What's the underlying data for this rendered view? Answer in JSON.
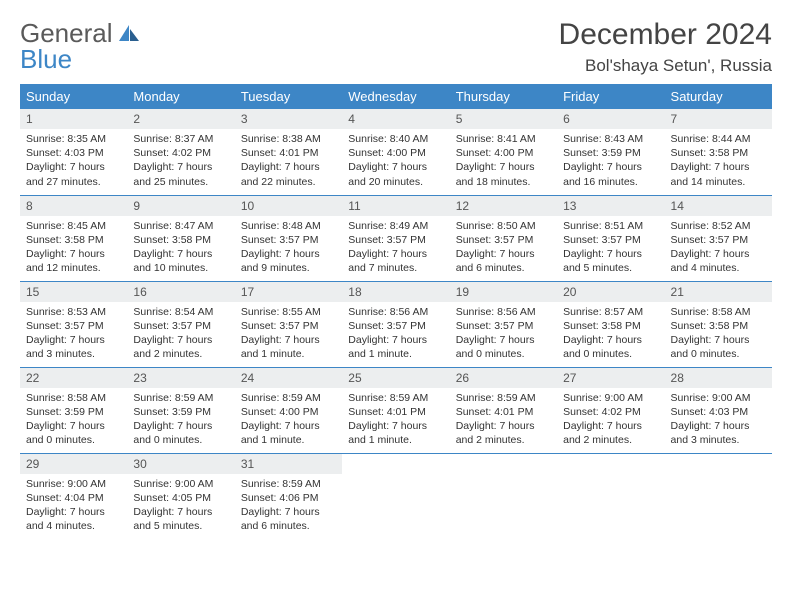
{
  "logo": {
    "text1": "General",
    "text2": "Blue",
    "icon_color": "#3d86c6"
  },
  "title": "December 2024",
  "location": "Bol'shaya Setun', Russia",
  "colors": {
    "header_bg": "#3d86c6",
    "header_text": "#ffffff",
    "daynum_bg": "#eceeef",
    "border": "#3d86c6",
    "text": "#333333"
  },
  "weekdays": [
    "Sunday",
    "Monday",
    "Tuesday",
    "Wednesday",
    "Thursday",
    "Friday",
    "Saturday"
  ],
  "weeks": [
    [
      {
        "n": "1",
        "sr": "8:35 AM",
        "ss": "4:03 PM",
        "dl": "7 hours and 27 minutes."
      },
      {
        "n": "2",
        "sr": "8:37 AM",
        "ss": "4:02 PM",
        "dl": "7 hours and 25 minutes."
      },
      {
        "n": "3",
        "sr": "8:38 AM",
        "ss": "4:01 PM",
        "dl": "7 hours and 22 minutes."
      },
      {
        "n": "4",
        "sr": "8:40 AM",
        "ss": "4:00 PM",
        "dl": "7 hours and 20 minutes."
      },
      {
        "n": "5",
        "sr": "8:41 AM",
        "ss": "4:00 PM",
        "dl": "7 hours and 18 minutes."
      },
      {
        "n": "6",
        "sr": "8:43 AM",
        "ss": "3:59 PM",
        "dl": "7 hours and 16 minutes."
      },
      {
        "n": "7",
        "sr": "8:44 AM",
        "ss": "3:58 PM",
        "dl": "7 hours and 14 minutes."
      }
    ],
    [
      {
        "n": "8",
        "sr": "8:45 AM",
        "ss": "3:58 PM",
        "dl": "7 hours and 12 minutes."
      },
      {
        "n": "9",
        "sr": "8:47 AM",
        "ss": "3:58 PM",
        "dl": "7 hours and 10 minutes."
      },
      {
        "n": "10",
        "sr": "8:48 AM",
        "ss": "3:57 PM",
        "dl": "7 hours and 9 minutes."
      },
      {
        "n": "11",
        "sr": "8:49 AM",
        "ss": "3:57 PM",
        "dl": "7 hours and 7 minutes."
      },
      {
        "n": "12",
        "sr": "8:50 AM",
        "ss": "3:57 PM",
        "dl": "7 hours and 6 minutes."
      },
      {
        "n": "13",
        "sr": "8:51 AM",
        "ss": "3:57 PM",
        "dl": "7 hours and 5 minutes."
      },
      {
        "n": "14",
        "sr": "8:52 AM",
        "ss": "3:57 PM",
        "dl": "7 hours and 4 minutes."
      }
    ],
    [
      {
        "n": "15",
        "sr": "8:53 AM",
        "ss": "3:57 PM",
        "dl": "7 hours and 3 minutes."
      },
      {
        "n": "16",
        "sr": "8:54 AM",
        "ss": "3:57 PM",
        "dl": "7 hours and 2 minutes."
      },
      {
        "n": "17",
        "sr": "8:55 AM",
        "ss": "3:57 PM",
        "dl": "7 hours and 1 minute."
      },
      {
        "n": "18",
        "sr": "8:56 AM",
        "ss": "3:57 PM",
        "dl": "7 hours and 1 minute."
      },
      {
        "n": "19",
        "sr": "8:56 AM",
        "ss": "3:57 PM",
        "dl": "7 hours and 0 minutes."
      },
      {
        "n": "20",
        "sr": "8:57 AM",
        "ss": "3:58 PM",
        "dl": "7 hours and 0 minutes."
      },
      {
        "n": "21",
        "sr": "8:58 AM",
        "ss": "3:58 PM",
        "dl": "7 hours and 0 minutes."
      }
    ],
    [
      {
        "n": "22",
        "sr": "8:58 AM",
        "ss": "3:59 PM",
        "dl": "7 hours and 0 minutes."
      },
      {
        "n": "23",
        "sr": "8:59 AM",
        "ss": "3:59 PM",
        "dl": "7 hours and 0 minutes."
      },
      {
        "n": "24",
        "sr": "8:59 AM",
        "ss": "4:00 PM",
        "dl": "7 hours and 1 minute."
      },
      {
        "n": "25",
        "sr": "8:59 AM",
        "ss": "4:01 PM",
        "dl": "7 hours and 1 minute."
      },
      {
        "n": "26",
        "sr": "8:59 AM",
        "ss": "4:01 PM",
        "dl": "7 hours and 2 minutes."
      },
      {
        "n": "27",
        "sr": "9:00 AM",
        "ss": "4:02 PM",
        "dl": "7 hours and 2 minutes."
      },
      {
        "n": "28",
        "sr": "9:00 AM",
        "ss": "4:03 PM",
        "dl": "7 hours and 3 minutes."
      }
    ],
    [
      {
        "n": "29",
        "sr": "9:00 AM",
        "ss": "4:04 PM",
        "dl": "7 hours and 4 minutes."
      },
      {
        "n": "30",
        "sr": "9:00 AM",
        "ss": "4:05 PM",
        "dl": "7 hours and 5 minutes."
      },
      {
        "n": "31",
        "sr": "8:59 AM",
        "ss": "4:06 PM",
        "dl": "7 hours and 6 minutes."
      },
      null,
      null,
      null,
      null
    ]
  ],
  "labels": {
    "sunrise": "Sunrise:",
    "sunset": "Sunset:",
    "daylight": "Daylight:"
  }
}
